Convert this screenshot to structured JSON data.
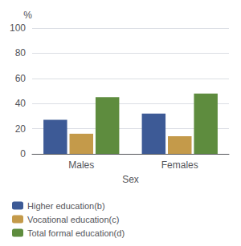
{
  "chart_data": {
    "type": "bar",
    "categories": [
      "Males",
      "Females"
    ],
    "series": [
      {
        "name": "Higher education(b)",
        "color": "#3D5A96",
        "values": [
          27,
          32
        ]
      },
      {
        "name": "Vocational education(c)",
        "color": "#C49A4A",
        "values": [
          16,
          14
        ]
      },
      {
        "name": "Total formal education(d)",
        "color": "#5E8C3E",
        "values": [
          45,
          48
        ]
      }
    ],
    "xlabel": "Sex",
    "ylabel": "%",
    "ylim": [
      0,
      100
    ],
    "yticks": [
      0,
      20,
      40,
      60,
      80,
      100
    ],
    "grid": true,
    "legend": "lower left"
  }
}
